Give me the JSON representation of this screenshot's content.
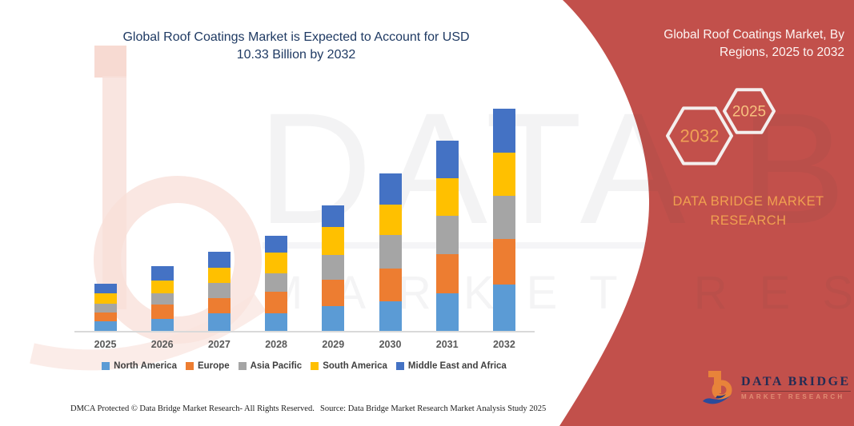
{
  "title": {
    "lines": [
      "Global Roof Coatings Market is Expected to Account for USD",
      "10.33 Billion by 2032"
    ],
    "color": "#1F3A63"
  },
  "chart_data": {
    "type": "bar",
    "subtype": "stacked-vertical",
    "title": "Global Roof Coatings Market is Expected to Account for USD 10.33 Billion by 2032",
    "unit": "USD Billion",
    "xlabel": "",
    "ylabel": "",
    "grid": false,
    "legend_position": "bottom",
    "axis_line_color": "#D9D9D9",
    "categories": [
      "2025",
      "2026",
      "2027",
      "2028",
      "2029",
      "2030",
      "2031",
      "2032"
    ],
    "series": [
      {
        "name": "North America",
        "color": "#5B9BD5",
        "values": [
          0.47,
          0.59,
          0.86,
          0.84,
          1.2,
          1.41,
          1.79,
          2.17
        ]
      },
      {
        "name": "Europe",
        "color": "#ED7D31",
        "values": [
          0.43,
          0.66,
          0.69,
          1.01,
          1.2,
          1.52,
          1.79,
          2.13
        ]
      },
      {
        "name": "Asia Pacific",
        "color": "#A5A5A5",
        "values": [
          0.4,
          0.54,
          0.7,
          0.84,
          1.15,
          1.55,
          1.78,
          2.0
        ]
      },
      {
        "name": "South America",
        "color": "#FFC000",
        "values": [
          0.47,
          0.57,
          0.7,
          0.98,
          1.3,
          1.42,
          1.74,
          1.98
        ]
      },
      {
        "name": "Middle East and Africa",
        "color": "#4472C4",
        "values": [
          0.47,
          0.67,
          0.74,
          0.78,
          1.01,
          1.45,
          1.77,
          2.05
        ]
      }
    ],
    "totals": [
      2.24,
      3.03,
      3.69,
      4.45,
      5.86,
      7.35,
      8.87,
      10.33
    ]
  },
  "watermark": {
    "line1": "DATA BRIDGE",
    "line2": "MARKET RESEARCH"
  },
  "side_panel": {
    "bg_color": "#C2504B",
    "title_lines": [
      "Global Roof Coatings Market, By",
      "Regions, 2025 to 2032"
    ],
    "hexagons": [
      {
        "label": "2032",
        "text_color": "#F0A156"
      },
      {
        "label": "2025",
        "text_color": "#F6C07E"
      }
    ],
    "brand_lines": [
      "DATA BRIDGE MARKET",
      "RESEARCH"
    ],
    "brand_color": "#F0A050"
  },
  "logo": {
    "line1": "DATA BRIDGE",
    "line2": "MARKET RESEARCH"
  },
  "footer": {
    "left": "DMCA Protected © Data Bridge Market Research-  All Rights Reserved.",
    "right": "Source: Data Bridge Market Research  Market Analysis Study 2025"
  }
}
